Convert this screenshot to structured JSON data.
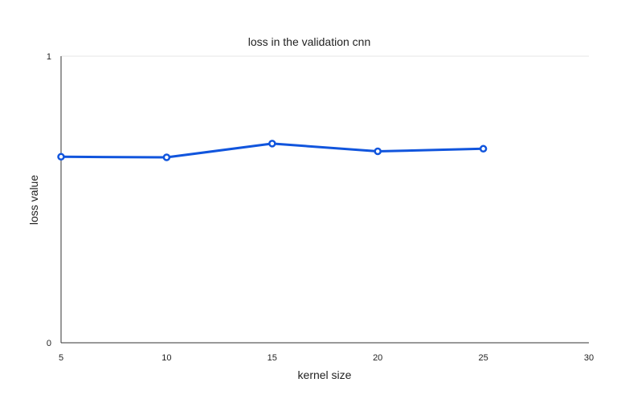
{
  "chart_data": {
    "type": "line",
    "title": "loss in the validation cnn",
    "xlabel": "kernel size",
    "ylabel": "loss value",
    "x": [
      5,
      10,
      15,
      20,
      25
    ],
    "series": [
      {
        "values": [
          0.649,
          0.647,
          0.695,
          0.668,
          0.677
        ],
        "color": "#1155dd"
      }
    ],
    "xlim": [
      5,
      30
    ],
    "ylim": [
      0,
      1
    ],
    "xticks": [
      5,
      10,
      15,
      20,
      25,
      30
    ],
    "yticks": [
      0,
      1
    ],
    "grid": true,
    "legend": "none"
  }
}
